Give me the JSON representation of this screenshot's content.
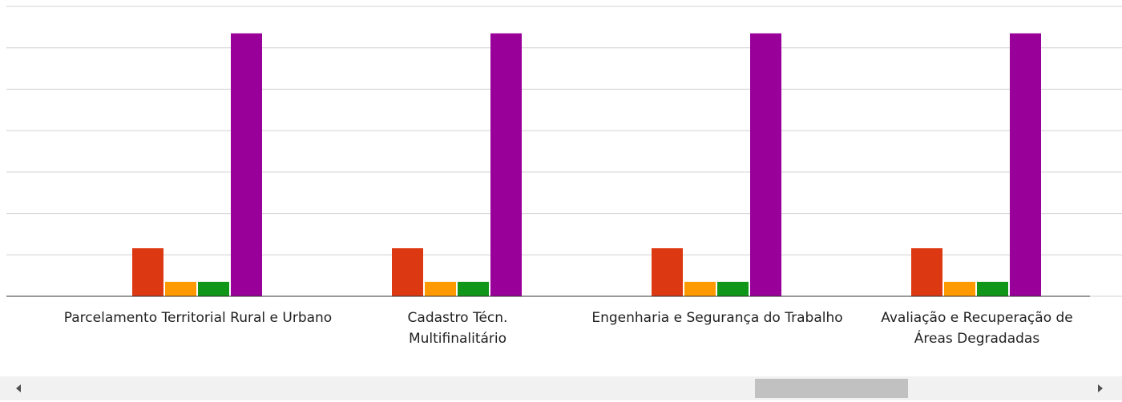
{
  "chart_data": {
    "type": "bar",
    "categories": [
      "Parcelamento Territorial Rural e Urbano",
      "Cadastro Técn. Multifinalitário",
      "Engenharia e Segurança do Trabalho",
      "Avaliação e Recuperação de Áreas Degradadas"
    ],
    "series": [
      {
        "color": "#dc3912",
        "values": [
          1.16,
          1.16,
          1.16,
          1.16
        ]
      },
      {
        "color": "#ff9900",
        "values": [
          0.35,
          0.35,
          0.35,
          0.35
        ]
      },
      {
        "color": "#109618",
        "values": [
          0.35,
          0.35,
          0.35,
          0.35
        ]
      },
      {
        "color": "#990099",
        "values": [
          6.35,
          6.35,
          6.35,
          6.35
        ]
      }
    ],
    "ylim": [
      0,
      7
    ],
    "yticks": [
      0,
      1,
      2,
      3,
      4,
      5,
      6,
      7
    ],
    "grid": true
  }
}
